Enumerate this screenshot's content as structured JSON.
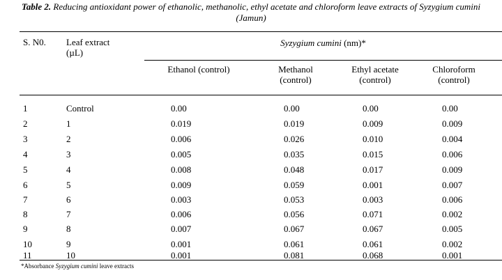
{
  "caption": {
    "label": "Table 2.",
    "text_before": " Reducing antioxidant power of ethanolic, methanolic, ethyl acetate and chloroform leave extracts of ",
    "species": "Syzygium cumini",
    "text_after": "(Jamun)"
  },
  "table": {
    "col_sno": "S. N0.",
    "col_leaf_line1": "Leaf extract",
    "col_leaf_line2": "(µL)",
    "group_species": "Syzygium cumini",
    "group_unit": " (nm)*",
    "sub_headers": [
      {
        "line1": "Ethanol (control)",
        "line2": ""
      },
      {
        "line1": "Methanol",
        "line2": "(control)"
      },
      {
        "line1": "Ethyl acetate",
        "line2": "(control)"
      },
      {
        "line1": "Chloroform",
        "line2": "(control)"
      }
    ],
    "rows": [
      {
        "sno": "1",
        "leaf": "Control",
        "v": [
          "0.00",
          "0.00",
          "0.00",
          "0.00"
        ]
      },
      {
        "sno": "2",
        "leaf": "1",
        "v": [
          "0.019",
          "0.019",
          "0.009",
          "0.009"
        ]
      },
      {
        "sno": "3",
        "leaf": "2",
        "v": [
          "0.006",
          "0.026",
          "0.010",
          "0.004"
        ]
      },
      {
        "sno": "4",
        "leaf": "3",
        "v": [
          "0.005",
          "0.035",
          "0.015",
          "0.006"
        ]
      },
      {
        "sno": "5",
        "leaf": "4",
        "v": [
          "0.008",
          "0.048",
          "0.017",
          "0.009"
        ]
      },
      {
        "sno": "6",
        "leaf": "5",
        "v": [
          "0.009",
          "0.059",
          "0.001",
          "0.007"
        ]
      },
      {
        "sno": "7",
        "leaf": "6",
        "v": [
          "0.003",
          "0.053",
          "0.003",
          "0.006"
        ]
      },
      {
        "sno": "8",
        "leaf": "7",
        "v": [
          "0.006",
          "0.056",
          "0.071",
          "0.002"
        ]
      },
      {
        "sno": "9",
        "leaf": "8",
        "v": [
          "0.007",
          "0.067",
          "0.067",
          "0.005"
        ]
      },
      {
        "sno": "10",
        "leaf": "9",
        "v": [
          "0.001",
          "0.061",
          "0.061",
          "0.002"
        ]
      },
      {
        "sno": "11",
        "leaf": "10",
        "v": [
          "0.001",
          "0.081",
          "0.068",
          "0.001"
        ]
      }
    ]
  },
  "footnote": {
    "prefix": "*Absorbance ",
    "species": "Syzygium cumini",
    "suffix": " leave extracts"
  }
}
